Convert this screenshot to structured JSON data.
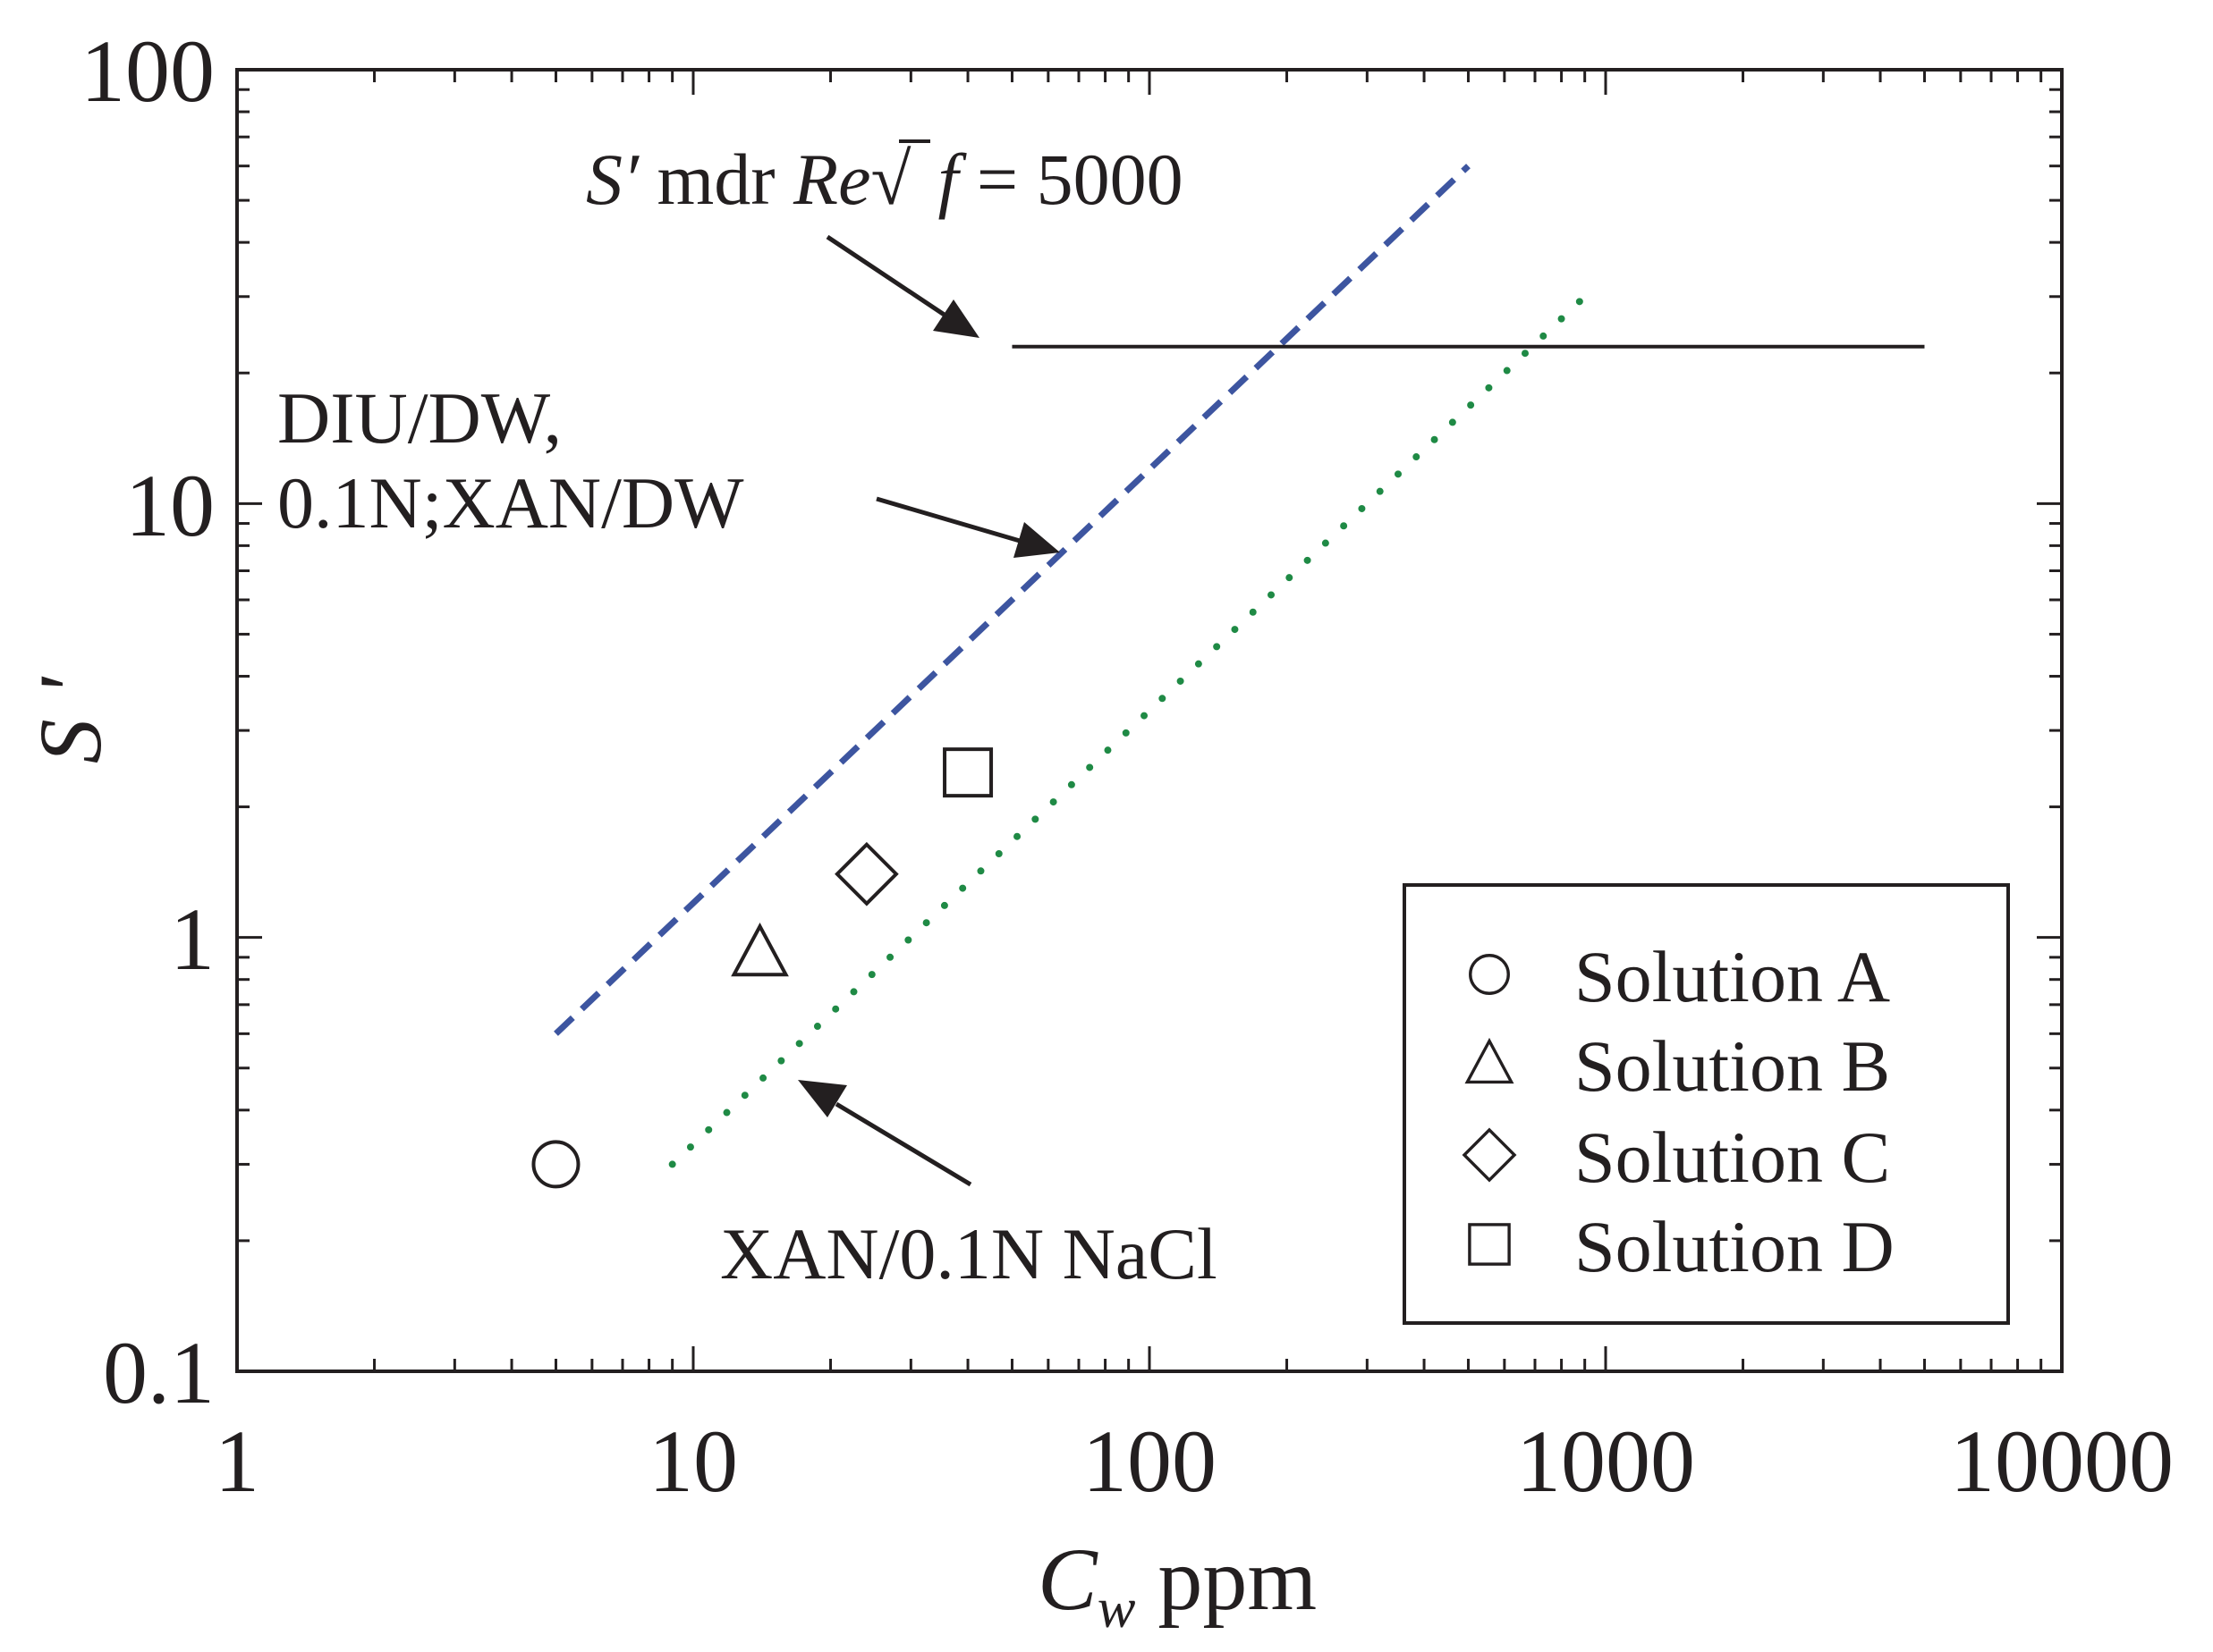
{
  "chart_data": {
    "type": "line",
    "xscale": "log",
    "yscale": "log",
    "xlim": [
      1,
      10000
    ],
    "ylim": [
      0.1,
      100
    ],
    "xticks": [
      "1",
      "10",
      "100",
      "1000",
      "10000"
    ],
    "yticks": [
      "0.1",
      "1",
      "10",
      "100"
    ],
    "xlabel": {
      "main": "C",
      "sub": "w",
      "unit": " ppm"
    },
    "ylabel": "S '",
    "grid": false,
    "legend_position": "bottom-right",
    "colors": {
      "axis": "#231f20",
      "dashed_line": "#3d55a0",
      "dotted_line": "#1f8a45",
      "mdr_line": "#231f20"
    },
    "series": [
      {
        "kind": "scatter",
        "marker": "circle",
        "x": [
          5
        ],
        "y": [
          0.3
        ],
        "name": "Solution A"
      },
      {
        "kind": "scatter",
        "marker": "triangle",
        "x": [
          14
        ],
        "y": [
          0.92
        ],
        "name": "Solution B"
      },
      {
        "kind": "scatter",
        "marker": "diamond",
        "x": [
          24
        ],
        "y": [
          1.4
        ],
        "name": "Solution C"
      },
      {
        "kind": "scatter",
        "marker": "square",
        "x": [
          40
        ],
        "y": [
          2.4
        ],
        "name": "Solution D"
      },
      {
        "kind": "line",
        "style": "dashed",
        "x": [
          5,
          500
        ],
        "y": [
          0.6,
          60
        ]
      },
      {
        "kind": "line",
        "style": "dotted",
        "x": [
          9,
          900
        ],
        "y": [
          0.3,
          30
        ]
      },
      {
        "kind": "line",
        "style": "solid",
        "x": [
          50,
          5000
        ],
        "y": [
          23,
          23
        ]
      }
    ],
    "annotations": {
      "mdr": {
        "italic_a": "S′",
        "plain_a": " mdr ",
        "italic_b": "Re",
        "plain_b": "√",
        "italic_c": "f",
        "plain_c": " = 5000"
      },
      "diu_line1": "DIU/DW,",
      "diu_line2": "0.1N;XAN/DW",
      "xan": "XAN/0.1N NaCl"
    }
  }
}
